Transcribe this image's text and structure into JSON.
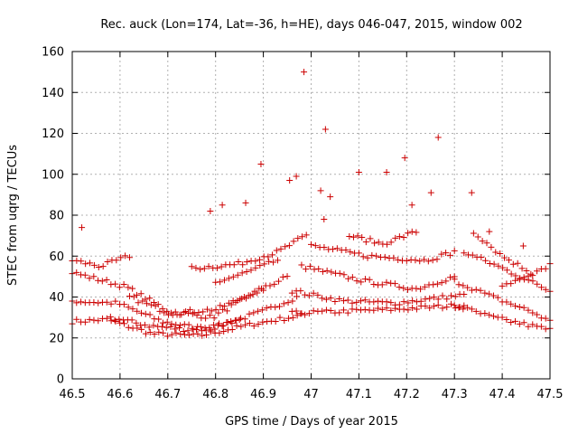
{
  "chart_data": {
    "type": "scatter",
    "title": "Rec. auck (Lon=174, Lat=-36, h=HE), days 046-047, 2015, window 002",
    "xlabel": "GPS time / Days of year 2015",
    "ylabel": "STEC from uqrg / TECUs",
    "xlim": [
      46.5,
      47.5
    ],
    "ylim": [
      0,
      160
    ],
    "xticks": [
      "46.5",
      "46.6",
      "46.7",
      "46.8",
      "46.9",
      "47",
      "47.1",
      "47.2",
      "47.3",
      "47.4",
      "47.5"
    ],
    "yticks": [
      "0",
      "20",
      "40",
      "60",
      "80",
      "100",
      "120",
      "140",
      "160"
    ],
    "grid": true,
    "marker": "+",
    "color": "#cc0000",
    "outliers": [
      [
        46.52,
        74
      ],
      [
        46.789,
        82
      ],
      [
        46.814,
        85
      ],
      [
        46.863,
        86
      ],
      [
        46.895,
        105
      ],
      [
        46.955,
        97
      ],
      [
        46.969,
        99
      ],
      [
        46.985,
        150
      ],
      [
        47.03,
        122
      ],
      [
        47.04,
        89
      ],
      [
        47.1,
        101
      ],
      [
        47.158,
        101
      ],
      [
        47.196,
        108
      ],
      [
        47.211,
        85
      ],
      [
        47.266,
        118
      ],
      [
        47.251,
        91
      ],
      [
        47.336,
        91
      ],
      [
        47.373,
        72
      ],
      [
        47.444,
        65
      ],
      [
        47.027,
        78
      ],
      [
        47.02,
        92
      ]
    ],
    "tracks": [
      {
        "x0": 46.5,
        "x1": 46.98,
        "t": [
          0,
          0.15,
          0.35,
          0.55,
          0.8,
          1
        ],
        "y": [
          28,
          29,
          22,
          21,
          27,
          31
        ]
      },
      {
        "x0": 46.5,
        "x1": 46.97,
        "t": [
          0,
          0.2,
          0.4,
          0.6,
          0.85,
          1
        ],
        "y": [
          38,
          37,
          28,
          24,
          33,
          40
        ]
      },
      {
        "x0": 46.5,
        "x1": 46.95,
        "t": [
          0,
          0.25,
          0.45,
          0.65,
          0.85,
          1
        ],
        "y": [
          52,
          45,
          33,
          30,
          42,
          50
        ]
      },
      {
        "x0": 46.5,
        "x1": 46.62,
        "t": [
          0,
          0.5,
          1
        ],
        "y": [
          58,
          55,
          60
        ]
      },
      {
        "x0": 46.58,
        "x1": 46.85,
        "t": [
          0,
          0.3,
          0.6,
          1
        ],
        "y": [
          30,
          26,
          24,
          28
        ]
      },
      {
        "x0": 46.62,
        "x1": 46.9,
        "t": [
          0,
          0.3,
          0.65,
          1
        ],
        "y": [
          40,
          32,
          34,
          44
        ]
      },
      {
        "x0": 46.75,
        "x1": 46.99,
        "t": [
          0,
          0.4,
          0.75,
          1
        ],
        "y": [
          54,
          56,
          62,
          70
        ]
      },
      {
        "x0": 46.8,
        "x1": 46.93,
        "t": [
          0,
          0.5,
          1
        ],
        "y": [
          47,
          52,
          58
        ]
      },
      {
        "x0": 46.96,
        "x1": 47.32,
        "t": [
          0,
          0.3,
          0.6,
          1
        ],
        "y": [
          32,
          33,
          34,
          36
        ]
      },
      {
        "x0": 46.96,
        "x1": 47.32,
        "t": [
          0,
          0.3,
          0.6,
          1
        ],
        "y": [
          43,
          38,
          37,
          41
        ]
      },
      {
        "x0": 46.98,
        "x1": 47.3,
        "t": [
          0,
          0.4,
          0.75,
          1
        ],
        "y": [
          55,
          48,
          44,
          50
        ]
      },
      {
        "x0": 47.0,
        "x1": 47.3,
        "t": [
          0,
          0.4,
          0.8,
          1
        ],
        "y": [
          65,
          60,
          58,
          62
        ]
      },
      {
        "x0": 47.08,
        "x1": 47.22,
        "t": [
          0,
          0.5,
          1
        ],
        "y": [
          70,
          66,
          72
        ]
      },
      {
        "x0": 47.3,
        "x1": 47.5,
        "t": [
          0,
          0.4,
          0.8,
          1
        ],
        "y": [
          36,
          30,
          26,
          24
        ]
      },
      {
        "x0": 47.3,
        "x1": 47.5,
        "t": [
          0,
          0.4,
          0.8,
          1
        ],
        "y": [
          48,
          40,
          33,
          28
        ]
      },
      {
        "x0": 47.32,
        "x1": 47.5,
        "t": [
          0,
          0.4,
          0.8,
          1
        ],
        "y": [
          62,
          55,
          47,
          43
        ]
      },
      {
        "x0": 47.34,
        "x1": 47.46,
        "t": [
          0,
          0.5,
          1
        ],
        "y": [
          72,
          60,
          52
        ]
      },
      {
        "x0": 47.4,
        "x1": 47.5,
        "t": [
          0,
          0.6,
          1
        ],
        "y": [
          46,
          50,
          56
        ]
      }
    ]
  }
}
